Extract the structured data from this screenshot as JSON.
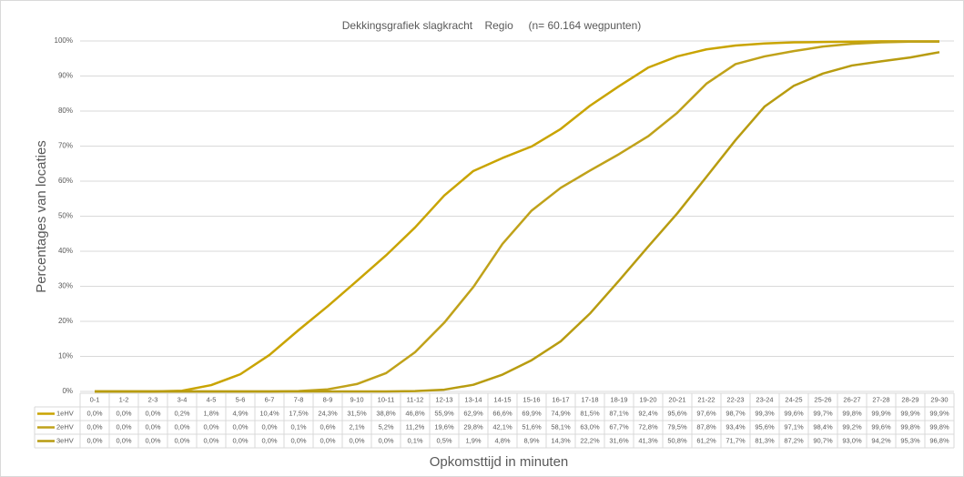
{
  "chart_data": {
    "type": "line",
    "title": "Dekkingsgrafiek slagkracht    Regio     (n= 60.164 wegpunten)",
    "y_label": "Percentages van locaties",
    "x_label": "Opkomsttijd in minuten",
    "categories": [
      "0-1",
      "1-2",
      "2-3",
      "3-4",
      "4-5",
      "5-6",
      "6-7",
      "7-8",
      "8-9",
      "9-10",
      "10-11",
      "11-12",
      "12-13",
      "13-14",
      "14-15",
      "15-16",
      "16-17",
      "17-18",
      "18-19",
      "19-20",
      "20-21",
      "21-22",
      "22-23",
      "23-24",
      "24-25",
      "25-26",
      "26-27",
      "27-28",
      "28-29",
      "29-30"
    ],
    "series": [
      {
        "name": "1eHV",
        "color": "#c9a400",
        "values": [
          0.0,
          0.0,
          0.0,
          0.2,
          1.8,
          4.9,
          10.4,
          17.5,
          24.3,
          31.5,
          38.8,
          46.8,
          55.9,
          62.9,
          66.6,
          69.9,
          74.9,
          81.5,
          87.1,
          92.4,
          95.6,
          97.6,
          98.7,
          99.3,
          99.6,
          99.7,
          99.8,
          99.9,
          99.9,
          99.9
        ],
        "value_labels": [
          "0,0%",
          "0,0%",
          "0,0%",
          "0,2%",
          "1,8%",
          "4,9%",
          "10,4%",
          "17,5%",
          "24,3%",
          "31,5%",
          "38,8%",
          "46,8%",
          "55,9%",
          "62,9%",
          "66,6%",
          "69,9%",
          "74,9%",
          "81,5%",
          "87,1%",
          "92,4%",
          "95,6%",
          "97,6%",
          "98,7%",
          "99,3%",
          "99,6%",
          "99,7%",
          "99,8%",
          "99,9%",
          "99,9%",
          "99,9%"
        ]
      },
      {
        "name": "2eHV",
        "color": "#c0a21a",
        "values": [
          0.0,
          0.0,
          0.0,
          0.0,
          0.0,
          0.0,
          0.0,
          0.1,
          0.6,
          2.1,
          5.2,
          11.2,
          19.6,
          29.8,
          42.1,
          51.6,
          58.1,
          63.0,
          67.7,
          72.8,
          79.5,
          87.8,
          93.4,
          95.6,
          97.1,
          98.4,
          99.2,
          99.6,
          99.8,
          99.8
        ],
        "value_labels": [
          "0,0%",
          "0,0%",
          "0,0%",
          "0,0%",
          "0,0%",
          "0,0%",
          "0,0%",
          "0,1%",
          "0,6%",
          "2,1%",
          "5,2%",
          "11,2%",
          "19,6%",
          "29,8%",
          "42,1%",
          "51,6%",
          "58,1%",
          "63,0%",
          "67,7%",
          "72,8%",
          "79,5%",
          "87,8%",
          "93,4%",
          "95,6%",
          "97,1%",
          "98,4%",
          "99,2%",
          "99,6%",
          "99,8%",
          "99,8%"
        ]
      },
      {
        "name": "3eHV",
        "color": "#b89c10",
        "values": [
          0.0,
          0.0,
          0.0,
          0.0,
          0.0,
          0.0,
          0.0,
          0.0,
          0.0,
          0.0,
          0.0,
          0.1,
          0.5,
          1.9,
          4.8,
          8.9,
          14.3,
          22.2,
          31.6,
          41.3,
          50.8,
          61.2,
          71.7,
          81.3,
          87.2,
          90.7,
          93.0,
          94.2,
          95.3,
          96.8
        ],
        "value_labels": [
          "0,0%",
          "0,0%",
          "0,0%",
          "0,0%",
          "0,0%",
          "0,0%",
          "0,0%",
          "0,0%",
          "0,0%",
          "0,0%",
          "0,0%",
          "0,1%",
          "0,5%",
          "1,9%",
          "4,8%",
          "8,9%",
          "14,3%",
          "22,2%",
          "31,6%",
          "41,3%",
          "50,8%",
          "61,2%",
          "71,7%",
          "81,3%",
          "87,2%",
          "90,7%",
          "93,0%",
          "94,2%",
          "95,3%",
          "96,8%"
        ]
      }
    ],
    "ylim": [
      0,
      100
    ],
    "yticks": [
      {
        "value": 0,
        "label": "0%"
      },
      {
        "value": 10,
        "label": "10%"
      },
      {
        "value": 20,
        "label": "20%"
      },
      {
        "value": 30,
        "label": "30%"
      },
      {
        "value": 40,
        "label": "40%"
      },
      {
        "value": 50,
        "label": "50%"
      },
      {
        "value": 60,
        "label": "60%"
      },
      {
        "value": 70,
        "label": "70%"
      },
      {
        "value": 80,
        "label": "80%"
      },
      {
        "value": 90,
        "label": "90%"
      },
      {
        "value": 100,
        "label": "100%"
      }
    ],
    "grid": true
  }
}
